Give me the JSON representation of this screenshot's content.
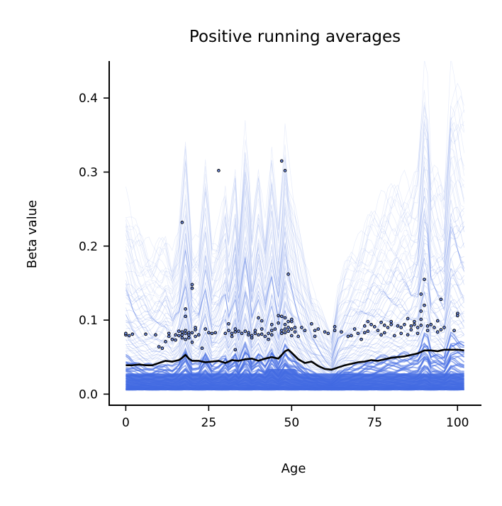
{
  "chart_data": {
    "type": "line",
    "title": "Positive running averages",
    "xlabel": "Age",
    "ylabel": "Beta value",
    "xlim": [
      -5,
      107
    ],
    "ylim": [
      -0.015,
      0.45
    ],
    "x_ticks": [
      0,
      25,
      50,
      75,
      100
    ],
    "x_tick_labels": [
      "0",
      "25",
      "50",
      "75",
      "100"
    ],
    "y_ticks": [
      0.0,
      0.1,
      0.2,
      0.3,
      0.4
    ],
    "y_tick_labels": [
      "0.0",
      "0.1",
      "0.2",
      "0.3",
      "0.4"
    ],
    "grid": false,
    "legend": "none",
    "colors": {
      "individual_lines": "#4169e1",
      "scatter_fill": "#6a86d8",
      "scatter_edge": "#000000",
      "mean_line": "#000000"
    },
    "mean_line": {
      "x": [
        0,
        2,
        4,
        6,
        8,
        10,
        12,
        14,
        16,
        17,
        18,
        19,
        20,
        22,
        24,
        26,
        28,
        30,
        32,
        34,
        36,
        38,
        40,
        42,
        44,
        46,
        47,
        48,
        49,
        50,
        52,
        54,
        56,
        58,
        60,
        62,
        64,
        66,
        68,
        70,
        72,
        74,
        76,
        78,
        80,
        82,
        84,
        86,
        88,
        90,
        92,
        94,
        96,
        98,
        100,
        102
      ],
      "y": [
        0.039,
        0.039,
        0.04,
        0.039,
        0.039,
        0.042,
        0.045,
        0.044,
        0.046,
        0.049,
        0.053,
        0.048,
        0.045,
        0.045,
        0.043,
        0.044,
        0.045,
        0.042,
        0.046,
        0.045,
        0.047,
        0.048,
        0.045,
        0.048,
        0.05,
        0.048,
        0.053,
        0.058,
        0.06,
        0.056,
        0.047,
        0.042,
        0.044,
        0.038,
        0.034,
        0.033,
        0.036,
        0.039,
        0.041,
        0.043,
        0.044,
        0.046,
        0.045,
        0.047,
        0.049,
        0.05,
        0.051,
        0.053,
        0.055,
        0.059,
        0.059,
        0.058,
        0.06,
        0.06,
        0.06,
        0.059
      ]
    },
    "points": [
      [
        0,
        0.08
      ],
      [
        0,
        0.082
      ],
      [
        1,
        0.079
      ],
      [
        2,
        0.081
      ],
      [
        6,
        0.081
      ],
      [
        9,
        0.08
      ],
      [
        10,
        0.064
      ],
      [
        11,
        0.062
      ],
      [
        12,
        0.071
      ],
      [
        13,
        0.078
      ],
      [
        13,
        0.082
      ],
      [
        14,
        0.074
      ],
      [
        15,
        0.073
      ],
      [
        15,
        0.08
      ],
      [
        16,
        0.079
      ],
      [
        16,
        0.085
      ],
      [
        17,
        0.076
      ],
      [
        17,
        0.08
      ],
      [
        17,
        0.084
      ],
      [
        17,
        0.232
      ],
      [
        18,
        0.074
      ],
      [
        18,
        0.082
      ],
      [
        18,
        0.086
      ],
      [
        18,
        0.105
      ],
      [
        18,
        0.115
      ],
      [
        19,
        0.08
      ],
      [
        19,
        0.083
      ],
      [
        19,
        0.076
      ],
      [
        20,
        0.07
      ],
      [
        20,
        0.083
      ],
      [
        20,
        0.143
      ],
      [
        20,
        0.148
      ],
      [
        21,
        0.078
      ],
      [
        21,
        0.087
      ],
      [
        21,
        0.09
      ],
      [
        22,
        0.08
      ],
      [
        23,
        0.062
      ],
      [
        24,
        0.088
      ],
      [
        25,
        0.083
      ],
      [
        26,
        0.082
      ],
      [
        27,
        0.083
      ],
      [
        28,
        0.302
      ],
      [
        30,
        0.082
      ],
      [
        31,
        0.086
      ],
      [
        31,
        0.095
      ],
      [
        32,
        0.078
      ],
      [
        32,
        0.082
      ],
      [
        33,
        0.084
      ],
      [
        33,
        0.088
      ],
      [
        33,
        0.06
      ],
      [
        34,
        0.085
      ],
      [
        35,
        0.082
      ],
      [
        36,
        0.085
      ],
      [
        37,
        0.08
      ],
      [
        37,
        0.083
      ],
      [
        38,
        0.076
      ],
      [
        38,
        0.079
      ],
      [
        39,
        0.082
      ],
      [
        39,
        0.086
      ],
      [
        40,
        0.08
      ],
      [
        40,
        0.103
      ],
      [
        41,
        0.081
      ],
      [
        41,
        0.088
      ],
      [
        41,
        0.099
      ],
      [
        42,
        0.078
      ],
      [
        43,
        0.074
      ],
      [
        43,
        0.082
      ],
      [
        44,
        0.08
      ],
      [
        44,
        0.086
      ],
      [
        44,
        0.094
      ],
      [
        45,
        0.088
      ],
      [
        46,
        0.096
      ],
      [
        46,
        0.106
      ],
      [
        47,
        0.082
      ],
      [
        47,
        0.105
      ],
      [
        47,
        0.086
      ],
      [
        47,
        0.315
      ],
      [
        48,
        0.083
      ],
      [
        48,
        0.088
      ],
      [
        48,
        0.094
      ],
      [
        48,
        0.103
      ],
      [
        48,
        0.302
      ],
      [
        49,
        0.085
      ],
      [
        49,
        0.09
      ],
      [
        49,
        0.098
      ],
      [
        49,
        0.162
      ],
      [
        50,
        0.079
      ],
      [
        50,
        0.088
      ],
      [
        50,
        0.098
      ],
      [
        50,
        0.101
      ],
      [
        51,
        0.084
      ],
      [
        51,
        0.09
      ],
      [
        52,
        0.078
      ],
      [
        53,
        0.09
      ],
      [
        54,
        0.086
      ],
      [
        56,
        0.095
      ],
      [
        57,
        0.078
      ],
      [
        57,
        0.086
      ],
      [
        58,
        0.088
      ],
      [
        60,
        0.084
      ],
      [
        61,
        0.082
      ],
      [
        63,
        0.086
      ],
      [
        63,
        0.091
      ],
      [
        65,
        0.084
      ],
      [
        67,
        0.078
      ],
      [
        68,
        0.079
      ],
      [
        69,
        0.088
      ],
      [
        70,
        0.082
      ],
      [
        71,
        0.074
      ],
      [
        72,
        0.083
      ],
      [
        72,
        0.092
      ],
      [
        73,
        0.085
      ],
      [
        73,
        0.098
      ],
      [
        74,
        0.094
      ],
      [
        75,
        0.091
      ],
      [
        76,
        0.086
      ],
      [
        77,
        0.08
      ],
      [
        77,
        0.097
      ],
      [
        78,
        0.083
      ],
      [
        78,
        0.093
      ],
      [
        79,
        0.09
      ],
      [
        80,
        0.094
      ],
      [
        80,
        0.098
      ],
      [
        81,
        0.079
      ],
      [
        82,
        0.092
      ],
      [
        83,
        0.082
      ],
      [
        83,
        0.09
      ],
      [
        84,
        0.094
      ],
      [
        85,
        0.102
      ],
      [
        85,
        0.08
      ],
      [
        86,
        0.087
      ],
      [
        86,
        0.092
      ],
      [
        87,
        0.094
      ],
      [
        87,
        0.098
      ],
      [
        88,
        0.082
      ],
      [
        88,
        0.09
      ],
      [
        89,
        0.093
      ],
      [
        89,
        0.101
      ],
      [
        89,
        0.112
      ],
      [
        89,
        0.135
      ],
      [
        90,
        0.12
      ],
      [
        90,
        0.155
      ],
      [
        91,
        0.086
      ],
      [
        91,
        0.092
      ],
      [
        92,
        0.094
      ],
      [
        93,
        0.09
      ],
      [
        94,
        0.084
      ],
      [
        94,
        0.099
      ],
      [
        95,
        0.087
      ],
      [
        95,
        0.128
      ],
      [
        96,
        0.09
      ],
      [
        99,
        0.086
      ],
      [
        100,
        0.109
      ],
      [
        100,
        0.106
      ]
    ]
  }
}
